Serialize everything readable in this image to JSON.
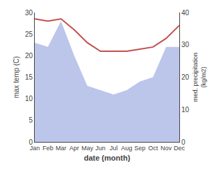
{
  "chart_data": {
    "type": "line",
    "categories": [
      "Jan",
      "Feb",
      "Mar",
      "Apr",
      "May",
      "Jun",
      "Jul",
      "Aug",
      "Sep",
      "Oct",
      "Nov",
      "Dec"
    ],
    "series": [
      {
        "type": "area",
        "color": "#bcc5ea",
        "values": [
          23,
          22,
          28,
          20,
          13,
          12,
          11,
          12,
          14,
          15,
          22,
          22
        ]
      },
      {
        "type": "line",
        "color": "#c0504d",
        "values": [
          28.5,
          28,
          28.5,
          26,
          23,
          21,
          21,
          21,
          21.5,
          22,
          24,
          27
        ]
      }
    ],
    "xlabel": "date (month)",
    "ylabel": "max temp (C)",
    "y2label": "med. precipitation\n(kg/m2)",
    "ylim": [
      0,
      30
    ],
    "yticks": [
      0,
      5,
      10,
      15,
      20,
      25,
      30
    ],
    "y2lim": [
      0,
      40
    ],
    "y2ticks": [
      0,
      10,
      20,
      30,
      40
    ],
    "grid": false
  }
}
